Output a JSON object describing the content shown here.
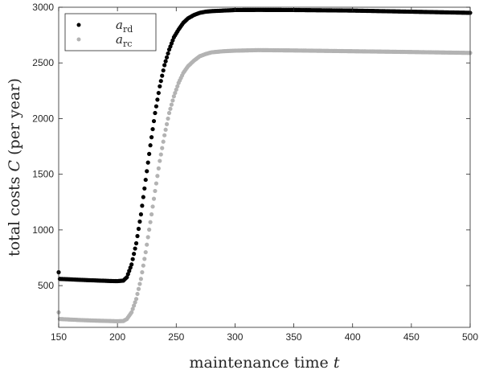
{
  "chart_data": {
    "type": "scatter",
    "title": "",
    "xlabel": "maintenance time",
    "xlabel_var": "t",
    "ylabel": "total costs",
    "ylabel_var": "C",
    "ylabel_suffix": "(per year)",
    "xlim": [
      150,
      500
    ],
    "ylim": [
      125,
      3000
    ],
    "xticks": [
      150,
      200,
      250,
      300,
      350,
      400,
      450,
      500
    ],
    "yticks": [
      500,
      1000,
      1500,
      2000,
      2500,
      3000
    ],
    "grid": false,
    "legend_position": "top-left",
    "series": [
      {
        "name": "a",
        "name_sub": "rd",
        "color": "#000000",
        "x": [
          150,
          151,
          160,
          170,
          180,
          190,
          195,
          200,
          205,
          208,
          212,
          216,
          220,
          224,
          228,
          232,
          236,
          240,
          244,
          248,
          252,
          256,
          260,
          265,
          270,
          275,
          280,
          290,
          300,
          320,
          350,
          400,
          450,
          500
        ],
        "y": [
          620,
          560,
          556,
          551,
          547,
          543,
          541,
          540,
          545,
          575,
          690,
          880,
          1140,
          1450,
          1760,
          2050,
          2290,
          2480,
          2620,
          2730,
          2800,
          2860,
          2900,
          2930,
          2950,
          2960,
          2965,
          2970,
          2975,
          2976,
          2975,
          2970,
          2960,
          2950
        ]
      },
      {
        "name": "a",
        "name_sub": "rc",
        "color": "#b3b3b3",
        "x": [
          150,
          151,
          160,
          170,
          180,
          190,
          200,
          205,
          208,
          212,
          216,
          220,
          224,
          228,
          232,
          236,
          240,
          244,
          248,
          252,
          256,
          260,
          265,
          270,
          275,
          280,
          290,
          300,
          320,
          350,
          400,
          450,
          500
        ],
        "y": [
          260,
          200,
          195,
          190,
          186,
          183,
          180,
          182,
          200,
          260,
          380,
          560,
          800,
          1070,
          1350,
          1620,
          1850,
          2050,
          2200,
          2320,
          2410,
          2470,
          2520,
          2560,
          2580,
          2595,
          2605,
          2610,
          2615,
          2612,
          2605,
          2598,
          2590
        ]
      }
    ]
  }
}
